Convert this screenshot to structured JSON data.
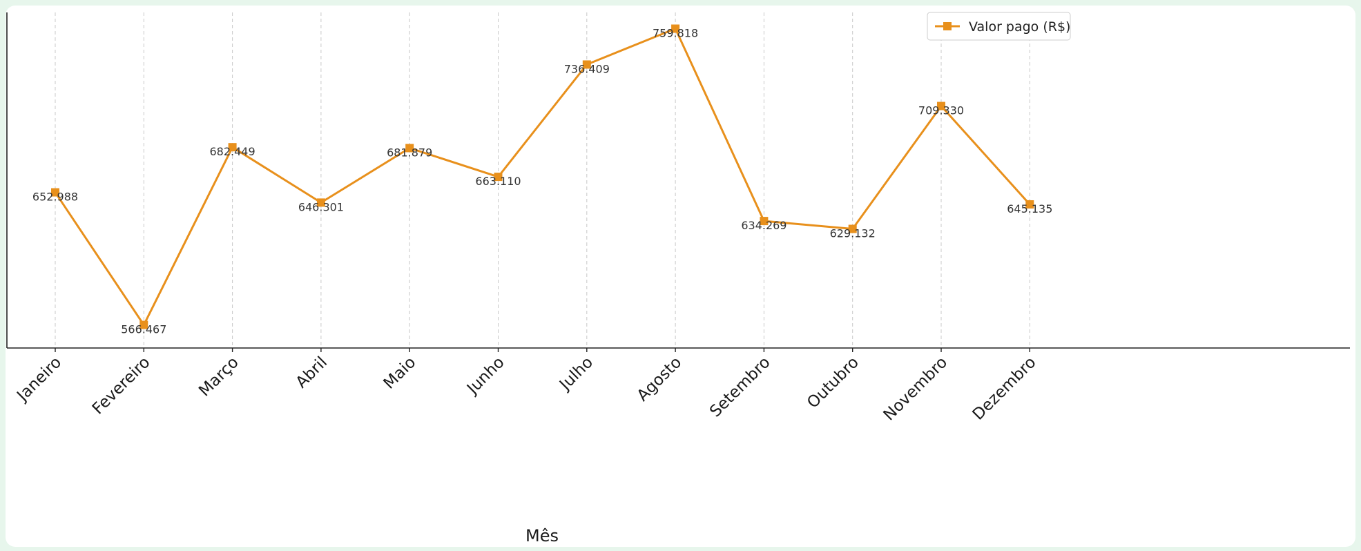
{
  "chart_data": {
    "type": "line",
    "title": "",
    "xlabel": "Mês",
    "ylabel": "",
    "categories": [
      "Janeiro",
      "Fevereiro",
      "Março",
      "Abril",
      "Maio",
      "Junho",
      "Julho",
      "Agosto",
      "Setembro",
      "Outubro",
      "Novembro",
      "Dezembro"
    ],
    "series": [
      {
        "name": "Valor pago (R$)",
        "values": [
          652988,
          566467,
          682449,
          646301,
          681879,
          663110,
          736409,
          759818,
          634269,
          629132,
          709330,
          645135
        ],
        "labels": [
          "652.988",
          "566.467",
          "682.449",
          "646.301",
          "681.879",
          "663.110",
          "736.409",
          "759.818",
          "634.269",
          "629.132",
          "709.330",
          "645.135"
        ],
        "color": "#e8901c",
        "marker": "square"
      }
    ],
    "ylim": [
      555000,
      765000
    ],
    "grid": "vertical-dashed",
    "legend": "top-right",
    "xtick_rotation": 45
  }
}
